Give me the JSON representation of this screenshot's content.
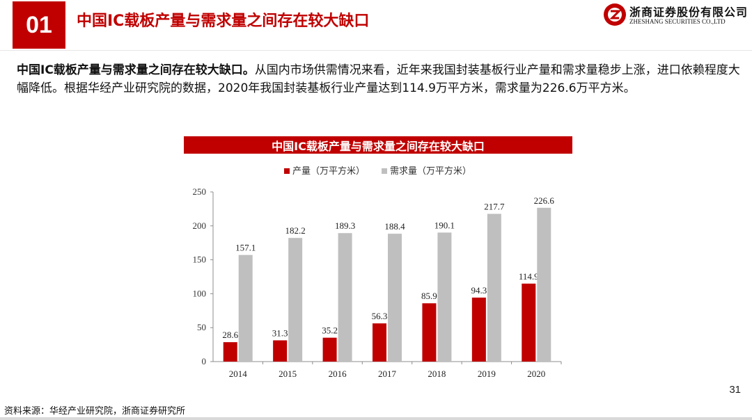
{
  "header": {
    "section_number": "01",
    "title": "中国IC载板产量与需求量之间存在较大缺口",
    "logo_cn": "浙商证券股份有限公司",
    "logo_en": "ZHESHANG SECURITIES CO.,LTD",
    "logo_icon": "zheshang-logo-icon"
  },
  "body": {
    "lead": "中国IC载板产量与需求量之间存在较大缺口。",
    "text": "从国内市场供需情况来看，近年来我国封装基板行业产量和需求量稳步上涨，进口依赖程度大幅降低。根据华经产业研究院的数据，2020年我国封装基板行业产量达到114.9万平方米，需求量为226.6万平方米。"
  },
  "chart_data": {
    "type": "bar",
    "title": "中国IC载板产量与需求量之间存在较大缺口",
    "categories": [
      "2014",
      "2015",
      "2016",
      "2017",
      "2018",
      "2019",
      "2020"
    ],
    "series": [
      {
        "name": "产量（万平方米）",
        "color": "#c00000",
        "values": [
          28.6,
          31.3,
          35.2,
          56.3,
          85.9,
          94.3,
          114.9
        ]
      },
      {
        "name": "需求量（万平方米）",
        "color": "#bfbfbf",
        "values": [
          157.1,
          182.2,
          189.3,
          188.4,
          190.1,
          217.7,
          226.6
        ]
      }
    ],
    "y_ticks": [
      "0",
      "50",
      "100",
      "150",
      "200",
      "250"
    ],
    "ylim": [
      0,
      250
    ],
    "xlabel": "",
    "ylabel": "",
    "legend_position": "top-center",
    "grid": false
  },
  "footer": {
    "page_number": "31",
    "source": "资料来源：华经产业研究院，浙商证券研究所"
  }
}
